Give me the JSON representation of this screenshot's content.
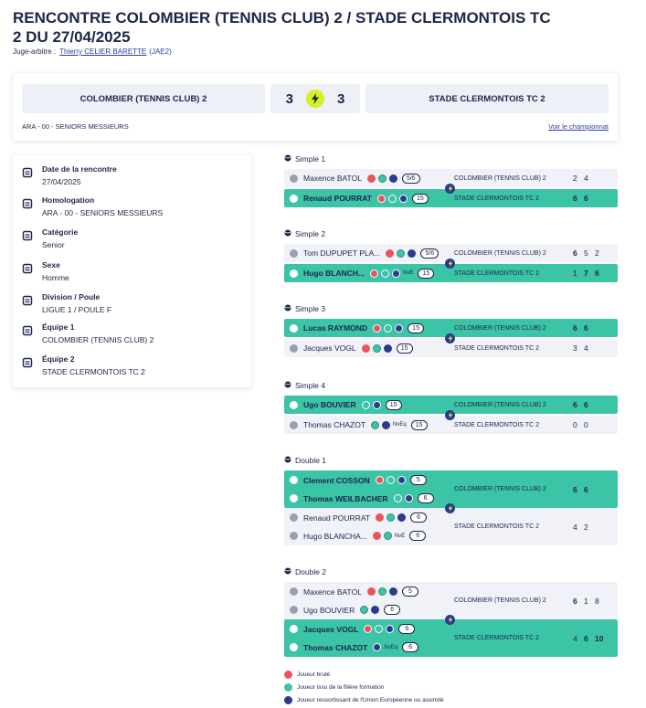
{
  "header": {
    "title": "RENCONTRE COLOMBIER (TENNIS CLUB) 2 / STADE CLERMONTOIS TC 2 DU 27/04/2025",
    "referee_label": "Juge-arbitre :",
    "referee_name": "Thierry CELIER BARETTE",
    "referee_grade": "(JAE2)"
  },
  "scoreboard": {
    "home": "COLOMBIER (TENNIS CLUB) 2",
    "home_score": "3",
    "away_score": "3",
    "away": "STADE CLERMONTOIS TC 2",
    "competition": "ARA - 00 - SENIORS MESSIEURS",
    "link": "Voir le championnat"
  },
  "info": [
    {
      "label": "Date de la rencontre",
      "value": "27/04/2025"
    },
    {
      "label": "Homologation",
      "value": "ARA - 00 - SENIORS MESSIEURS"
    },
    {
      "label": "Catégorie",
      "value": "Senior"
    },
    {
      "label": "Sexe",
      "value": "Homme"
    },
    {
      "label": "Division / Poule",
      "value": "LIGUE 1 / POULE F"
    },
    {
      "label": "Équipe 1",
      "value": "COLOMBIER (TENNIS CLUB) 2"
    },
    {
      "label": "Équipe 2",
      "value": "STADE CLERMONTOIS TC 2"
    }
  ],
  "matches": [
    {
      "title": "Simple 1",
      "teams": [
        {
          "players": [
            {
              "name": "Maxence BATOL",
              "rank": "5/6"
            }
          ],
          "team": "COLOMBIER (TENNIS CLUB) 2",
          "scores": [
            "2",
            "4"
          ],
          "winner": false
        },
        {
          "players": [
            {
              "name": "Renaud POURRAT",
              "rank": "15"
            }
          ],
          "team": "STADE CLERMONTOIS TC 2",
          "scores": [
            "6",
            "6"
          ],
          "winner": true
        }
      ]
    },
    {
      "title": "Simple 2",
      "teams": [
        {
          "players": [
            {
              "name": "Tom DUPUPET PLA...",
              "rank": "5/6"
            }
          ],
          "team": "COLOMBIER (TENNIS CLUB) 2",
          "scores": [
            "6",
            "5",
            "2"
          ],
          "winner": false
        },
        {
          "players": [
            {
              "name": "Hugo BLANCH...",
              "tag": "NvE",
              "rank": "15"
            }
          ],
          "team": "STADE CLERMONTOIS TC 2",
          "scores": [
            "1",
            "7",
            "6"
          ],
          "winner": true
        }
      ]
    },
    {
      "title": "Simple 3",
      "teams": [
        {
          "players": [
            {
              "name": "Lucas RAYMOND",
              "rank": "15"
            }
          ],
          "team": "COLOMBIER (TENNIS CLUB) 2",
          "scores": [
            "6",
            "6"
          ],
          "winner": true
        },
        {
          "players": [
            {
              "name": "Jacques VOGL",
              "rank": "15"
            }
          ],
          "team": "STADE CLERMONTOIS TC 2",
          "scores": [
            "3",
            "4"
          ],
          "winner": false
        }
      ]
    },
    {
      "title": "Simple 4",
      "teams": [
        {
          "players": [
            {
              "name": "Ugo BOUVIER",
              "rank": "15"
            }
          ],
          "team": "COLOMBIER (TENNIS CLUB) 2",
          "scores": [
            "6",
            "6"
          ],
          "winner": true
        },
        {
          "players": [
            {
              "name": "Thomas CHAZOT",
              "tag": "NvEq",
              "rank": "15"
            }
          ],
          "team": "STADE CLERMONTOIS TC 2",
          "scores": [
            "0",
            "0"
          ],
          "winner": false
        }
      ]
    },
    {
      "title": "Double 1",
      "teams": [
        {
          "players": [
            {
              "name": "Clement COSSON",
              "rank": "5"
            },
            {
              "name": "Thomas WEILBACHER",
              "rank": "6"
            }
          ],
          "team": "COLOMBIER (TENNIS CLUB) 2",
          "scores": [
            "6",
            "6"
          ],
          "winner": true
        },
        {
          "players": [
            {
              "name": "Renaud POURRAT",
              "rank": "6"
            },
            {
              "name": "Hugo BLANCHA...",
              "tag": "NvE",
              "rank": "6"
            }
          ],
          "team": "STADE CLERMONTOIS TC 2",
          "scores": [
            "4",
            "2"
          ],
          "winner": false
        }
      ]
    },
    {
      "title": "Double 2",
      "teams": [
        {
          "players": [
            {
              "name": "Maxence BATOL",
              "rank": "5"
            },
            {
              "name": "Ugo BOUVIER",
              "rank": "6"
            }
          ],
          "team": "COLOMBIER (TENNIS CLUB) 2",
          "scores": [
            "6",
            "1",
            "8"
          ],
          "winner": false
        },
        {
          "players": [
            {
              "name": "Jacques VOGL",
              "rank": "6"
            },
            {
              "name": "Thomas CHAZOT",
              "tag": "NvEq",
              "rank": "6"
            }
          ],
          "team": "STADE CLERMONTOIS TC 2",
          "scores": [
            "4",
            "6",
            "10"
          ],
          "winner": true
        }
      ]
    }
  ],
  "legend": [
    "Joueur brulé",
    "Joueur issu de la filière formation",
    "Joueur ressortissant de l'Union Européenne ou assimilé"
  ]
}
